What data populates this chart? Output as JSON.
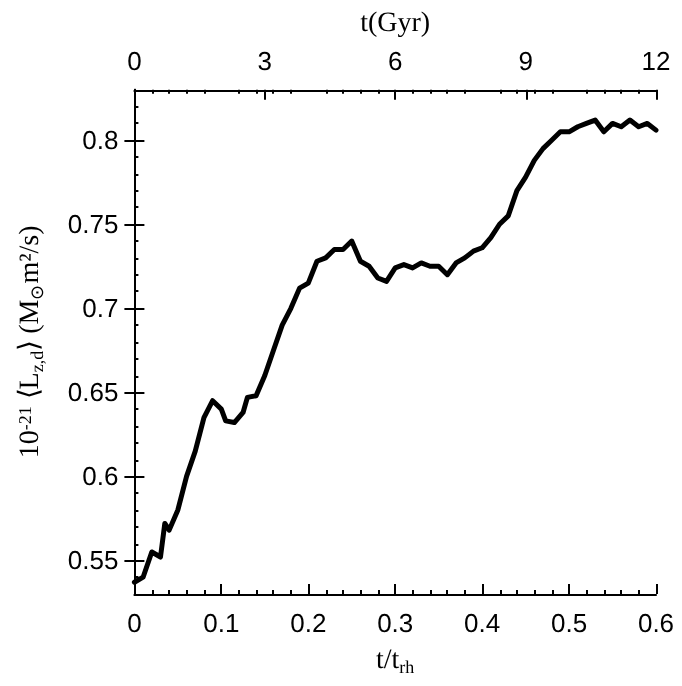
{
  "chart_data": {
    "type": "line",
    "xlabel": "t/t$_{rh}$",
    "ylabel": "10$^{-21}$ ⟨L$_{z,d}$⟩ (M$_{⊙}$m²/s)",
    "x2label": "t(Gyr)",
    "xlim": [
      0,
      0.6
    ],
    "xticks": [
      0,
      0.1,
      0.2,
      0.3,
      0.4,
      0.5,
      0.6
    ],
    "x2lim": [
      0,
      12
    ],
    "x2ticks": [
      0,
      3,
      6,
      9,
      12
    ],
    "ylim": [
      0.53,
      0.83
    ],
    "yticks": [
      0.55,
      0.6,
      0.65,
      0.7,
      0.75,
      0.8
    ],
    "marker": "none",
    "line_style": "solid",
    "series": [
      {
        "color": "#000000",
        "x": [
          0,
          0.01,
          0.02,
          0.03,
          0.035,
          0.04,
          0.05,
          0.06,
          0.07,
          0.08,
          0.09,
          0.1,
          0.105,
          0.115,
          0.125,
          0.13,
          0.14,
          0.15,
          0.16,
          0.17,
          0.18,
          0.19,
          0.2,
          0.21,
          0.22,
          0.23,
          0.24,
          0.25,
          0.26,
          0.27,
          0.28,
          0.29,
          0.3,
          0.31,
          0.32,
          0.33,
          0.34,
          0.35,
          0.36,
          0.37,
          0.38,
          0.39,
          0.4,
          0.41,
          0.42,
          0.43,
          0.44,
          0.45,
          0.46,
          0.47,
          0.48,
          0.49,
          0.5,
          0.51,
          0.52,
          0.53,
          0.54,
          0.55,
          0.56,
          0.57,
          0.58,
          0.59,
          0.6
        ],
        "values": [
          0.537,
          0.54,
          0.555,
          0.552,
          0.572,
          0.568,
          0.58,
          0.6,
          0.615,
          0.635,
          0.645,
          0.64,
          0.633,
          0.632,
          0.638,
          0.647,
          0.648,
          0.66,
          0.675,
          0.69,
          0.7,
          0.712,
          0.715,
          0.728,
          0.73,
          0.735,
          0.735,
          0.74,
          0.728,
          0.725,
          0.718,
          0.716,
          0.724,
          0.726,
          0.724,
          0.727,
          0.725,
          0.725,
          0.72,
          0.727,
          0.73,
          0.734,
          0.736,
          0.742,
          0.75,
          0.755,
          0.77,
          0.778,
          0.788,
          0.795,
          0.8,
          0.805,
          0.805,
          0.808,
          0.81,
          0.812,
          0.805,
          0.81,
          0.808,
          0.812,
          0.808,
          0.81,
          0.806
        ]
      }
    ]
  }
}
